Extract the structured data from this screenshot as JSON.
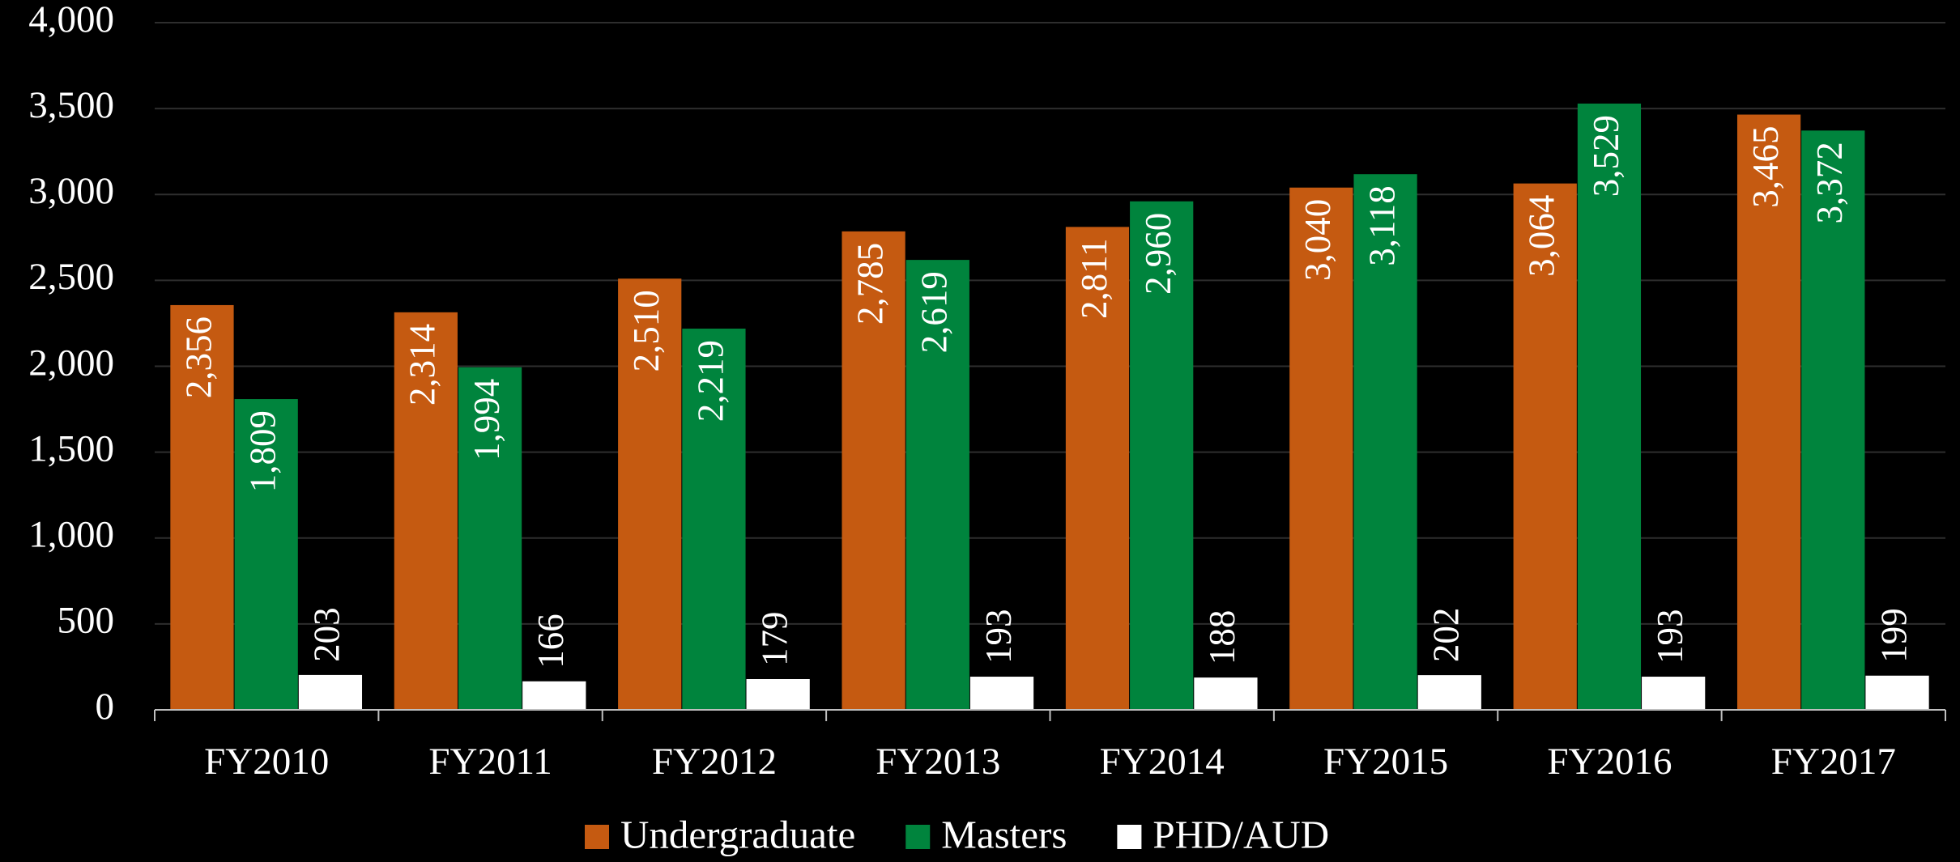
{
  "chart_data": {
    "type": "bar",
    "categories": [
      "FY2010",
      "FY2011",
      "FY2012",
      "FY2013",
      "FY2014",
      "FY2015",
      "FY2016",
      "FY2017"
    ],
    "series": [
      {
        "name": "Undergraduate",
        "color": "#c55a11",
        "values": [
          2356,
          2314,
          2510,
          2785,
          2811,
          3040,
          3064,
          3465
        ],
        "value_labels": [
          "2,356",
          "2,314",
          "2,510",
          "2,785",
          "2,811",
          "3,040",
          "3,064",
          "3,465"
        ]
      },
      {
        "name": "Masters",
        "color": "#00843d",
        "values": [
          1809,
          1994,
          2219,
          2619,
          2960,
          3118,
          3529,
          3372
        ],
        "value_labels": [
          "1,809",
          "1,994",
          "2,219",
          "2,619",
          "2,960",
          "3,118",
          "3,529",
          "3,372"
        ]
      },
      {
        "name": "PHD/AUD",
        "color": "#ffffff",
        "values": [
          203,
          166,
          179,
          193,
          188,
          202,
          193,
          199
        ]
      }
    ],
    "ylim": [
      0,
      4000
    ],
    "yticks": [
      0,
      500,
      {
        "value": 1000,
        "label": "1,000"
      },
      {
        "value": 1500,
        "label": "1,500"
      },
      {
        "value": 2000,
        "label": "2,000"
      },
      {
        "value": 2500,
        "label": "2,500"
      },
      {
        "value": 3000,
        "label": "3,000"
      },
      {
        "value": 3500,
        "label": "3,500"
      },
      {
        "value": 4000,
        "label": "4,000"
      }
    ],
    "grid": true,
    "legend": "bottom"
  }
}
